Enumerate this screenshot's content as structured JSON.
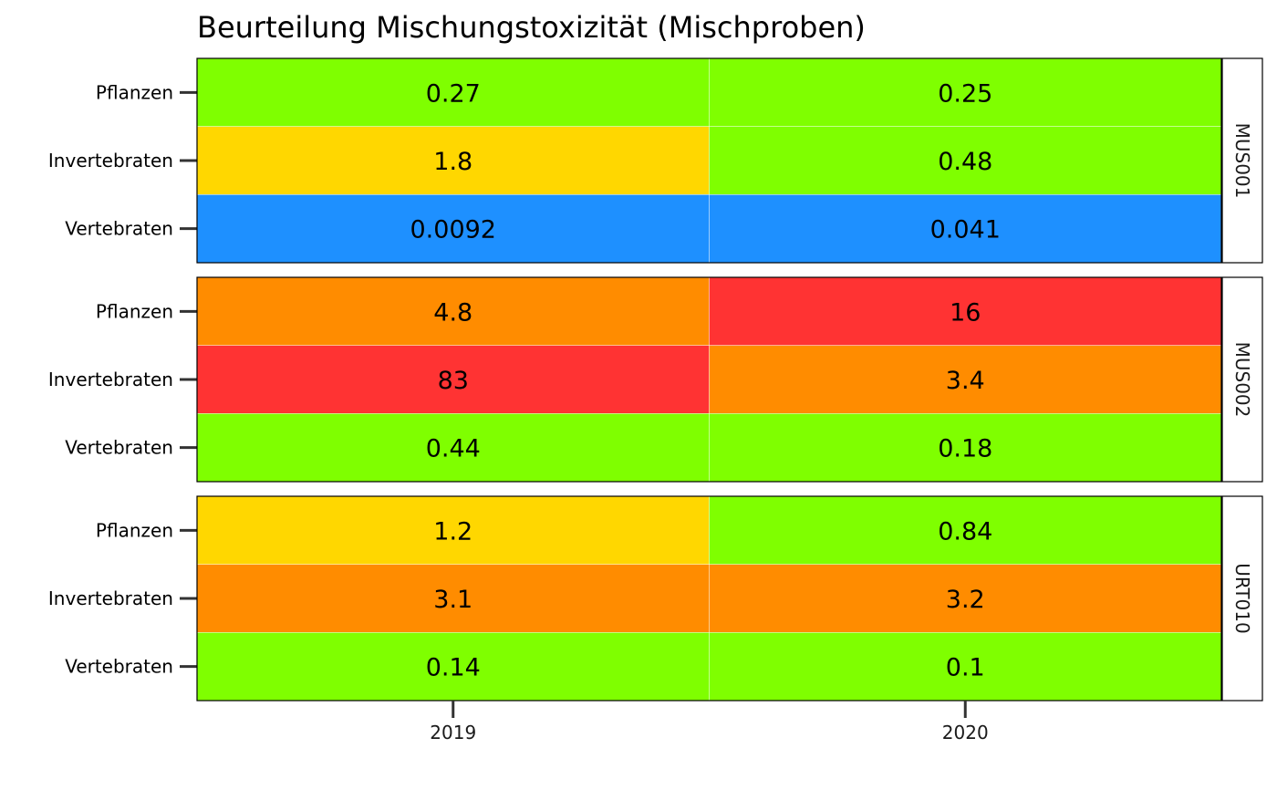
{
  "chart_data": {
    "type": "heatmap",
    "title": "Beurteilung Mischungstoxizität (Mischproben)",
    "x_categories": [
      "2019",
      "2020"
    ],
    "y_categories": [
      "Pflanzen",
      "Invertebraten",
      "Vertebraten"
    ],
    "panels": [
      {
        "name": "MUS001",
        "rows": [
          {
            "label": "Pflanzen",
            "values": [
              {
                "text": "0.27",
                "value": 0.27,
                "color": "#7FFF00"
              },
              {
                "text": "0.25",
                "value": 0.25,
                "color": "#7FFF00"
              }
            ]
          },
          {
            "label": "Invertebraten",
            "values": [
              {
                "text": "1.8",
                "value": 1.8,
                "color": "#FFD700"
              },
              {
                "text": "0.48",
                "value": 0.48,
                "color": "#7FFF00"
              }
            ]
          },
          {
            "label": "Vertebraten",
            "values": [
              {
                "text": "0.0092",
                "value": 0.0092,
                "color": "#1E90FF"
              },
              {
                "text": "0.041",
                "value": 0.041,
                "color": "#1E90FF"
              }
            ]
          }
        ]
      },
      {
        "name": "MUS002",
        "rows": [
          {
            "label": "Pflanzen",
            "values": [
              {
                "text": "4.8",
                "value": 4.8,
                "color": "#FF8C00"
              },
              {
                "text": "16",
                "value": 16,
                "color": "#FF3333"
              }
            ]
          },
          {
            "label": "Invertebraten",
            "values": [
              {
                "text": "83",
                "value": 83,
                "color": "#FF3333"
              },
              {
                "text": "3.4",
                "value": 3.4,
                "color": "#FF8C00"
              }
            ]
          },
          {
            "label": "Vertebraten",
            "values": [
              {
                "text": "0.44",
                "value": 0.44,
                "color": "#7FFF00"
              },
              {
                "text": "0.18",
                "value": 0.18,
                "color": "#7FFF00"
              }
            ]
          }
        ]
      },
      {
        "name": "URT010",
        "rows": [
          {
            "label": "Pflanzen",
            "values": [
              {
                "text": "1.2",
                "value": 1.2,
                "color": "#FFD700"
              },
              {
                "text": "0.84",
                "value": 0.84,
                "color": "#7FFF00"
              }
            ]
          },
          {
            "label": "Invertebraten",
            "values": [
              {
                "text": "3.1",
                "value": 3.1,
                "color": "#FF8C00"
              },
              {
                "text": "3.2",
                "value": 3.2,
                "color": "#FF8C00"
              }
            ]
          },
          {
            "label": "Vertebraten",
            "values": [
              {
                "text": "0.14",
                "value": 0.14,
                "color": "#7FFF00"
              },
              {
                "text": "0.1",
                "value": 0.1,
                "color": "#7FFF00"
              }
            ]
          }
        ]
      }
    ],
    "grid": false,
    "legend": "none"
  }
}
